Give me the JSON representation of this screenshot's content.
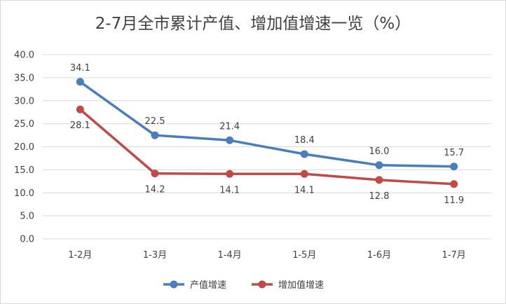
{
  "chart_data": {
    "type": "line",
    "title": "2-7月全市累计产值、增加值增速一览（%）",
    "categories": [
      "1-2月",
      "1-3月",
      "1-4月",
      "1-5月",
      "1-6月",
      "1-7月"
    ],
    "series": [
      {
        "name": "产值增速",
        "values": [
          34.1,
          22.5,
          21.4,
          18.4,
          16.0,
          15.7
        ],
        "labels": [
          "34.1",
          "22.5",
          "21.4",
          "18.4",
          "16.0",
          "15.7"
        ],
        "color": "#4a7ebb"
      },
      {
        "name": "增加值增速",
        "values": [
          28.1,
          14.2,
          14.1,
          14.1,
          12.8,
          11.9
        ],
        "labels": [
          "28.1",
          "14.2",
          "14.1",
          "14.1",
          "12.8",
          "11.9"
        ],
        "color": "#be4b48"
      }
    ],
    "yticks": [
      "0.0",
      "5.0",
      "10.0",
      "15.0",
      "20.0",
      "25.0",
      "30.0",
      "35.0",
      "40.0"
    ],
    "ylim": [
      0,
      40
    ],
    "grid": true,
    "legend_position": "bottom"
  }
}
